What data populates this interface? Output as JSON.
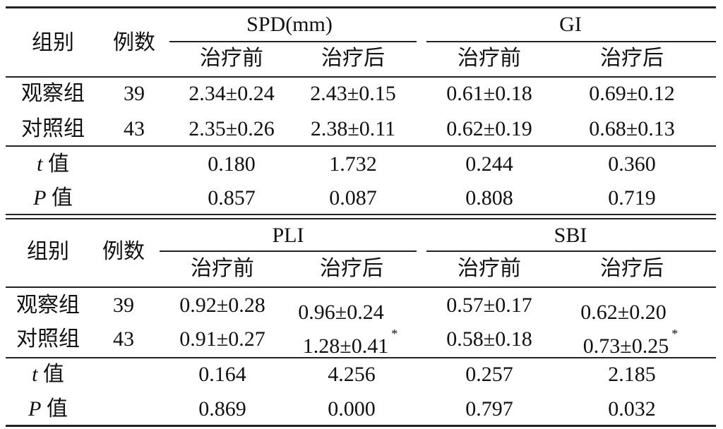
{
  "upper": {
    "col_group": "组别",
    "col_n": "例数",
    "metric_left": "SPD(mm)",
    "metric_right": "GI",
    "before": "治疗前",
    "after": "治疗后",
    "rows": [
      {
        "group": "观察组",
        "n": "39",
        "v1": "2.34±0.24",
        "v2": "2.43±0.15",
        "v3": "0.61±0.18",
        "v4": "0.69±0.12"
      },
      {
        "group": "对照组",
        "n": "43",
        "v1": "2.35±0.26",
        "v2": "2.38±0.11",
        "v3": "0.62±0.19",
        "v4": "0.68±0.13"
      }
    ],
    "t_label_italic": "t",
    "t_label_suffix": "值",
    "t_values": [
      "0.180",
      "1.732",
      "0.244",
      "0.360"
    ],
    "p_label_italic": "P",
    "p_label_suffix": "值",
    "p_values": [
      "0.857",
      "0.087",
      "0.808",
      "0.719"
    ]
  },
  "lower": {
    "col_group": "组别",
    "col_n": "例数",
    "metric_left": "PLI",
    "metric_right": "SBI",
    "before": "治疗前",
    "after": "治疗后",
    "rows": [
      {
        "group": "观察组",
        "n": "39",
        "v1": "0.92±0.28",
        "v2": "0.96±0.24",
        "v2_mark": "",
        "v3": "0.57±0.17",
        "v4": "0.62±0.20",
        "v4_mark": ""
      },
      {
        "group": "对照组",
        "n": "43",
        "v1": "0.91±0.27",
        "v2": "1.28±0.41",
        "v2_mark": "*",
        "v3": "0.58±0.18",
        "v4": "0.73±0.25",
        "v4_mark": "*"
      }
    ],
    "t_label_italic": "t",
    "t_label_suffix": "值",
    "t_values": [
      "0.164",
      "4.256",
      "0.257",
      "2.185"
    ],
    "p_label_italic": "P",
    "p_label_suffix": "值",
    "p_values": [
      "0.869",
      "0.000",
      "0.797",
      "0.032"
    ]
  }
}
